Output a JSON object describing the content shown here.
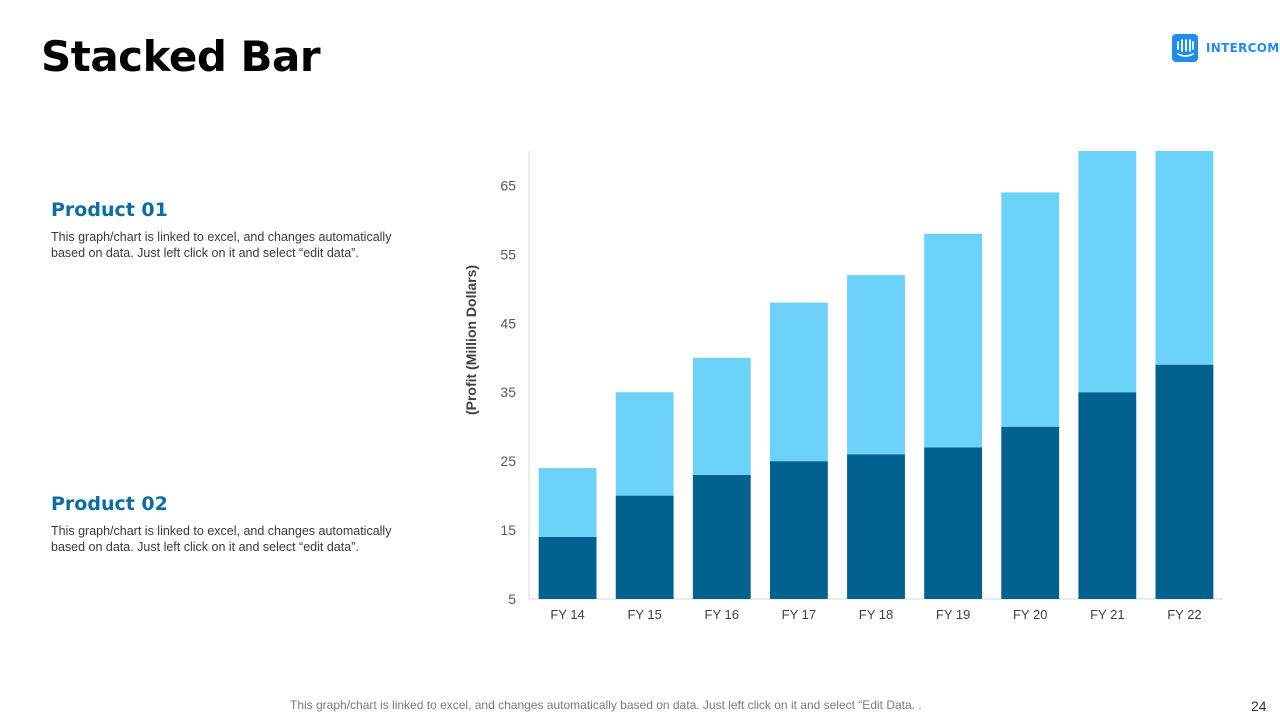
{
  "slide": {
    "title": "Stacked Bar",
    "footer": "This graph/chart is linked to excel, and changes automatically based on data. Just left click on it and select “Edit Data. .",
    "page_number": "24"
  },
  "logo": {
    "text": "INTERCOM",
    "icon": "intercom-logo-icon",
    "color": "#1f8ded"
  },
  "products": [
    {
      "title": "Product 01",
      "description": "This graph/chart is linked to excel, and changes automatically based on data. Just left click on it and select “edit data”."
    },
    {
      "title": "Product 02",
      "description": "This graph/chart is linked to excel, and changes automatically based on data. Just left click on it and select “edit data”."
    }
  ],
  "chart_data": {
    "type": "bar",
    "stacked": true,
    "categories": [
      "FY 14",
      "FY 15",
      "FY 16",
      "FY 17",
      "FY 18",
      "FY 19",
      "FY 20",
      "FY 21",
      "FY 22"
    ],
    "series": [
      {
        "values": [
          9,
          15,
          18,
          20,
          21,
          22,
          25,
          30,
          34
        ],
        "color": "#02628f"
      },
      {
        "values": [
          10,
          15,
          17,
          23,
          26,
          31,
          34,
          37,
          36
        ],
        "color": "#6dd2fa"
      }
    ],
    "ylabel": "(Profit  (Million Dollars)",
    "ylim": [
      5,
      70
    ],
    "yticks": [
      5,
      15,
      25,
      35,
      45,
      55,
      65
    ],
    "grid": false,
    "legend": "none"
  }
}
